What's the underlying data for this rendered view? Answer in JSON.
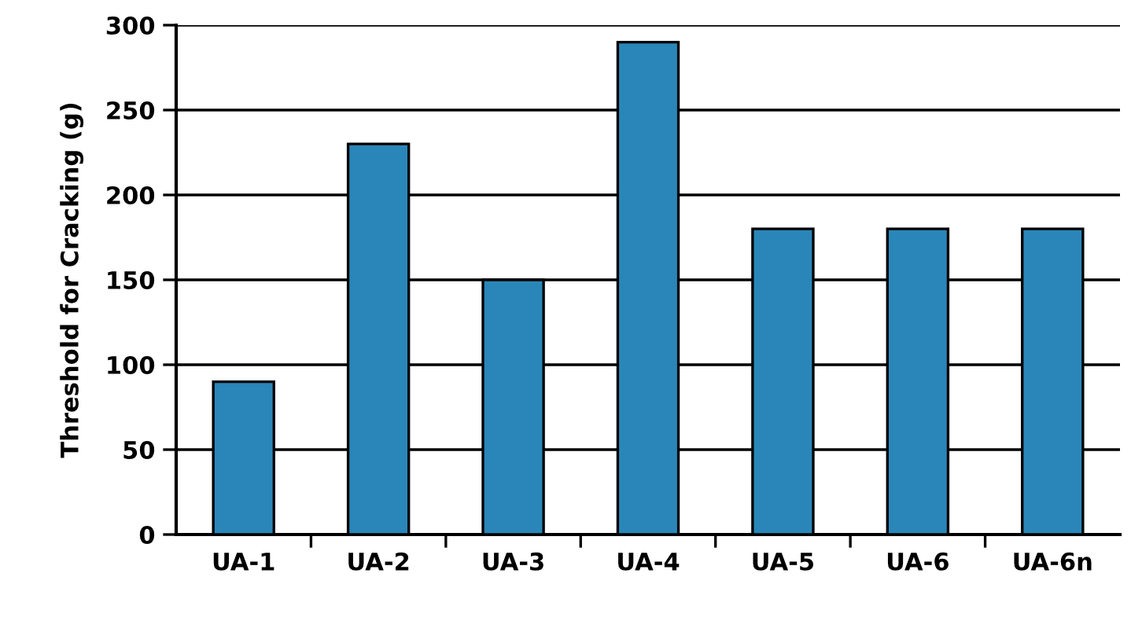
{
  "chart_data": {
    "type": "bar",
    "ylabel": "Threshold for Cracking (g)",
    "categories": [
      "UA-1",
      "UA-2",
      "UA-3",
      "UA-4",
      "UA-5",
      "UA-6",
      "UA-6n"
    ],
    "values": [
      90,
      230,
      150,
      290,
      180,
      180,
      180
    ],
    "color": "#2a86b8",
    "ylim": [
      0,
      300
    ],
    "yticks": [
      0,
      50,
      100,
      150,
      200,
      250,
      300
    ],
    "grid": "y"
  }
}
